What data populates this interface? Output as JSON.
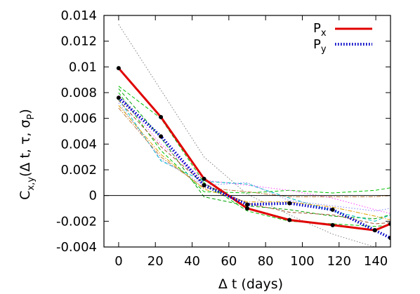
{
  "chart_data": {
    "type": "line",
    "title": "",
    "xlabel": "Δ t (days)",
    "ylabel_parts": {
      "main": "C",
      "main_sub": "x,y",
      "open": "(Δ t, τ, σ",
      "paren_sub": "P",
      "close": ")"
    },
    "xlim": [
      -8,
      148
    ],
    "ylim": [
      -0.004,
      0.014
    ],
    "xticks": [
      0,
      20,
      40,
      60,
      80,
      100,
      120,
      140
    ],
    "yticks": [
      -0.004,
      -0.002,
      0,
      0.002,
      0.004,
      0.006,
      0.008,
      0.01,
      0.012,
      0.014
    ],
    "ytick_labels": [
      "-0.004",
      "-0.002",
      "0",
      "0.002",
      "0.004",
      "0.006",
      "0.008",
      "0.01",
      "0.012",
      "0.014"
    ],
    "zero_line": true,
    "grid": false,
    "legend_position": "top-right",
    "series": [
      {
        "name": "P",
        "name_sub": "x",
        "color": "#e00000",
        "style": "solid",
        "markers": true,
        "x": [
          0,
          23,
          46.5,
          70,
          93,
          116.5,
          139.5,
          148
        ],
        "y": [
          0.0099,
          0.0061,
          0.0013,
          -0.001,
          -0.0019,
          -0.0023,
          -0.0027,
          -0.0022
        ]
      },
      {
        "name": "P",
        "name_sub": "y",
        "color": "#0000c8",
        "style": "dotted",
        "markers": true,
        "x": [
          0,
          23,
          46.5,
          70,
          93,
          116.5,
          139.5,
          148
        ],
        "y": [
          0.0076,
          0.0046,
          0.0008,
          -0.0007,
          -0.0006,
          -0.0011,
          -0.0027,
          -0.0033
        ]
      }
    ],
    "background_series": [
      {
        "color": "#808080",
        "style": "dotted",
        "x": [
          0,
          23,
          46.5,
          70,
          93,
          116.5,
          139.5,
          148
        ],
        "y": [
          0.0133,
          0.0082,
          0.003,
          0.0001,
          -0.0015,
          -0.003,
          -0.004,
          -0.004
        ]
      },
      {
        "color": "#00c000",
        "style": "dashed",
        "x": [
          0,
          23,
          46.5,
          70,
          93,
          116.5,
          139.5,
          148
        ],
        "y": [
          0.0085,
          0.006,
          0.001,
          -0.0012,
          -0.002,
          -0.0022,
          -0.0024,
          -0.0023
        ]
      },
      {
        "color": "#00a000",
        "style": "dashed",
        "x": [
          0,
          23,
          46.5,
          70,
          93,
          116.5,
          139.5,
          148
        ],
        "y": [
          0.0083,
          0.0045,
          -0.0001,
          -0.0008,
          -0.0011,
          -0.0016,
          -0.0018,
          -0.0015
        ]
      },
      {
        "color": "#00c000",
        "style": "dashed",
        "x": [
          0,
          23,
          46.5,
          70,
          93,
          116.5,
          139.5,
          148
        ],
        "y": [
          0.008,
          0.0035,
          0.0003,
          0.0002,
          0.0004,
          0.0002,
          0.0004,
          0.0006
        ]
      },
      {
        "color": "#ff40ff",
        "style": "dotted",
        "x": [
          0,
          23,
          46.5,
          70,
          93,
          116.5,
          139.5,
          148
        ],
        "y": [
          0.0078,
          0.004,
          0.0012,
          0.0008,
          0.0004,
          -0.0002,
          -0.0011,
          -0.0014
        ]
      },
      {
        "color": "#00c0c0",
        "style": "dashed",
        "x": [
          0,
          23,
          46.5,
          70,
          93,
          116.5,
          139.5,
          148
        ],
        "y": [
          0.0075,
          0.0027,
          0.0011,
          0.0009,
          -0.0002,
          -0.0012,
          -0.002,
          -0.0015
        ]
      },
      {
        "color": "#8080ff",
        "style": "dotted",
        "x": [
          0,
          23,
          46.5,
          70,
          93,
          116.5,
          139.5,
          148
        ],
        "y": [
          0.0072,
          0.0028,
          0.0008,
          0.001,
          -0.0004,
          -0.0008,
          -0.0012,
          -0.001
        ]
      },
      {
        "color": "#e0a000",
        "style": "dashdot",
        "x": [
          0,
          23,
          46.5,
          70,
          93,
          116.5,
          139.5,
          148
        ],
        "y": [
          0.007,
          0.0032,
          0.0005,
          -0.0005,
          -0.0005,
          -0.0009,
          -0.0016,
          -0.0019
        ]
      },
      {
        "color": "#a0522d",
        "style": "dashed",
        "x": [
          0,
          23,
          46.5,
          70,
          93,
          116.5,
          139.5,
          148
        ],
        "y": [
          0.0074,
          0.0038,
          0.0009,
          -0.0006,
          -0.0013,
          -0.0015,
          -0.0022,
          -0.0021
        ]
      },
      {
        "color": "#c08040",
        "style": "dashdot",
        "x": [
          0,
          23,
          46.5,
          70,
          93,
          116.5,
          139.5,
          148
        ],
        "y": [
          0.0068,
          0.003,
          0.0006,
          0.0003,
          -0.0001,
          -0.0001,
          -0.0001,
          0.0
        ]
      }
    ]
  }
}
